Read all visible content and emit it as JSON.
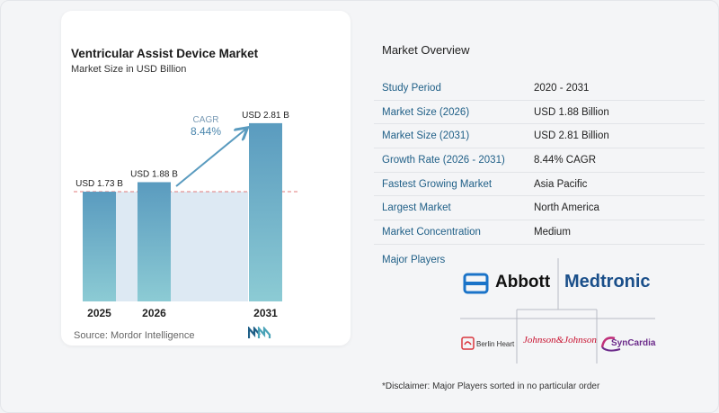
{
  "chart": {
    "title": "Ventricular Assist Device Market",
    "subtitle": "Market Size in USD Billion",
    "source": "Source: Mordor Intelligence",
    "cagr_label": "CAGR",
    "cagr_value": "8.44%"
  },
  "chart_data": {
    "type": "bar",
    "title": "Ventricular Assist Device Market",
    "subtitle": "Market Size in USD Billion",
    "categories": [
      "2025",
      "2026",
      "2031"
    ],
    "values": [
      1.73,
      1.88,
      2.81
    ],
    "data_labels": [
      "USD 1.73 B",
      "USD 1.88 B",
      "USD 2.81 B"
    ],
    "annotation": "CAGR 8.44%",
    "ylim": [
      0,
      3.0
    ],
    "grid": false,
    "legend": "none"
  },
  "overview": {
    "title": "Market Overview",
    "rows": [
      {
        "label": "Study Period",
        "value": "2020 - 2031"
      },
      {
        "label": "Market Size (2026)",
        "value": "USD 1.88 Billion"
      },
      {
        "label": "Market Size (2031)",
        "value": "USD 2.81 Billion"
      },
      {
        "label": "Growth Rate (2026 - 2031)",
        "value": "8.44% CAGR"
      },
      {
        "label": "Fastest Growing Market",
        "value": "Asia Pacific"
      },
      {
        "label": "Largest Market",
        "value": "North America"
      },
      {
        "label": "Market Concentration",
        "value": "Medium"
      }
    ]
  },
  "players": {
    "title": "Major Players",
    "abbott": "Abbott",
    "medtronic": "Medtronic",
    "berlin_heart": "Berlin Heart",
    "jnj": "Johnson&Johnson",
    "syncardia": "SynCardia"
  },
  "disclaimer": "*Disclaimer: Major Players sorted in no particular order",
  "colors": {
    "bar_top": "#5a9bbf",
    "bar_bottom": "#8ccbd4",
    "highlight_area": "#dde9f3",
    "arrow": "#5a9bbf",
    "dashed_line": "#e07b7b",
    "label_blue": "#1f5f87"
  }
}
